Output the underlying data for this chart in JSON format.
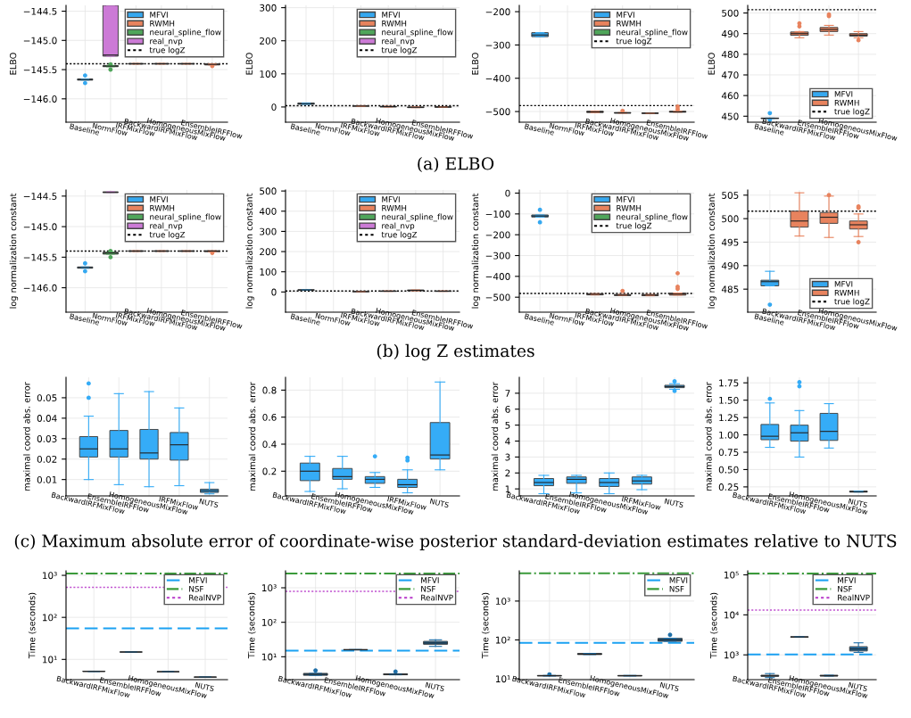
{
  "chart_data": [
    {
      "type": "box",
      "ylabel": "ELBO",
      "annotations": [
        "(a) ELBO"
      ],
      "legend": "top right",
      "grid": true,
      "categories": [
        "Baseline",
        "NormFlow",
        "IRFMixFlow",
        "BackwardIRFMixFlow",
        "HomogeneousMixFlow",
        "EnsembleIRFFlow"
      ],
      "series": [
        {
          "name": "MFVI",
          "color": "#35a8f0",
          "boxes": [
            {
              "low": -145.68,
              "q1": -145.68,
              "median": -145.67,
              "q3": -145.66,
              "high": -145.66,
              "outliers": [
                -145.6,
                -145.73
              ]
            },
            null,
            null,
            null,
            null,
            null
          ]
        },
        {
          "name": "RWMH",
          "color": "#e8835e",
          "boxes": [
            null,
            null,
            {
              "low": -145.405,
              "q1": -145.405,
              "median": -145.4,
              "q3": -145.395,
              "high": -145.395
            },
            {
              "low": -145.405,
              "q1": -145.405,
              "median": -145.4,
              "q3": -145.395,
              "high": -145.395
            },
            {
              "low": -145.405,
              "q1": -145.405,
              "median": -145.4,
              "q3": -145.395,
              "high": -145.395
            },
            {
              "low": -145.42,
              "q1": -145.42,
              "median": -145.41,
              "q3": -145.4,
              "high": -145.4,
              "outliers": [
                -145.44
              ]
            }
          ]
        },
        {
          "name": "neural_spline_flow",
          "color": "#4fa65a",
          "boxes": [
            null,
            {
              "low": -145.45,
              "q1": -145.45,
              "median": -145.44,
              "q3": -145.43,
              "high": -145.43,
              "outliers": [
                -145.41,
                -145.5
              ]
            },
            null,
            null,
            null,
            null
          ]
        },
        {
          "name": "real_nvp",
          "color": "#cc7ad6",
          "boxes": [
            null,
            {
              "low": -145.27,
              "q1": -145.27,
              "median": -145.25,
              "q3": -144.4,
              "high": -144.4
            },
            null,
            null,
            null,
            null
          ]
        }
      ],
      "ylim": [
        -146.4,
        -144.4
      ],
      "yticks": [
        {
          "value": -146,
          "label": "−146.0"
        },
        {
          "value": -145.5,
          "label": "−145.5"
        },
        {
          "value": -145,
          "label": "−145.0"
        },
        {
          "value": -144.5,
          "label": "−144.5"
        }
      ],
      "ref_lines": [
        {
          "axis": "y",
          "value": -145.4,
          "label": "true logZ",
          "color": "#000000",
          "line_style": "dotted"
        }
      ]
    },
    {
      "type": "box",
      "ylabel": "ELBO",
      "legend": "top right",
      "grid": true,
      "categories": [
        "Baseline",
        "NormFlow",
        "IRFMixFlow",
        "BackwardIRFMixFlow",
        "HomogeneousMixFlow",
        "EnsembleIRFFlow"
      ],
      "series": [
        {
          "name": "MFVI",
          "color": "#35a8f0",
          "boxes": [
            {
              "low": 8,
              "q1": 8,
              "median": 10,
              "q3": 12,
              "high": 12
            },
            null,
            null,
            null,
            null,
            null
          ]
        },
        {
          "name": "RWMH",
          "color": "#e8835e",
          "boxes": [
            null,
            null,
            {
              "low": 2,
              "q1": 2,
              "median": 3,
              "q3": 4,
              "high": 4
            },
            {
              "low": 0,
              "q1": 0,
              "median": 1,
              "q3": 2,
              "high": 2
            },
            {
              "low": -2,
              "q1": -2,
              "median": -1,
              "q3": 0,
              "high": 0
            },
            {
              "low": -1,
              "q1": -1,
              "median": 0,
              "q3": 1,
              "high": 1
            }
          ]
        },
        {
          "name": "neural_spline_flow",
          "color": "#4fa65a",
          "boxes": [
            null,
            null,
            null,
            null,
            null,
            null
          ]
        },
        {
          "name": "real_nvp",
          "color": "#cc7ad6",
          "boxes": [
            null,
            null,
            null,
            null,
            null,
            null
          ]
        }
      ],
      "ylim": [
        -46,
        307
      ],
      "yticks": [
        0,
        100,
        200,
        300
      ],
      "ref_lines": [
        {
          "axis": "y",
          "value": 4,
          "label": "true logZ",
          "color": "#000000",
          "line_style": "dotted"
        }
      ]
    },
    {
      "type": "box",
      "ylabel": "ELBO",
      "legend": "top right",
      "grid": true,
      "categories": [
        "Baseline",
        "NormFlow",
        "IRFMixFlow",
        "BackwardIRFMixFlow",
        "HomogeneousMixFlow",
        "EnsembleIRFFlow"
      ],
      "series": [
        {
          "name": "MFVI",
          "color": "#35a8f0",
          "boxes": [
            {
              "low": -275,
              "q1": -275,
              "median": -270,
              "q3": -263,
              "high": -263
            },
            null,
            null,
            null,
            null,
            null
          ]
        },
        {
          "name": "RWMH",
          "color": "#e8835e",
          "boxes": [
            null,
            null,
            {
              "low": -503,
              "q1": -503,
              "median": -501,
              "q3": -499,
              "high": -499
            },
            {
              "low": -505,
              "q1": -505,
              "median": -504,
              "q3": -503,
              "high": -503,
              "outliers": [
                -498
              ]
            },
            {
              "low": -506,
              "q1": -506,
              "median": -505,
              "q3": -504,
              "high": -504
            },
            {
              "low": -502,
              "q1": -502,
              "median": -501,
              "q3": -499,
              "high": -499,
              "outliers": [
                -485,
                -493
              ]
            }
          ]
        },
        {
          "name": "neural_spline_flow",
          "color": "#4fa65a",
          "boxes": [
            null,
            null,
            null,
            null,
            null,
            null
          ]
        }
      ],
      "ylim": [
        -532,
        -181
      ],
      "yticks": [
        {
          "value": -500,
          "label": "−500"
        },
        {
          "value": -400,
          "label": "−400"
        },
        {
          "value": -300,
          "label": "−300"
        },
        {
          "value": -200,
          "label": "−200"
        }
      ],
      "ref_lines": [
        {
          "axis": "y",
          "value": -482,
          "label": "true logZ",
          "color": "#000000",
          "line_style": "dotted"
        }
      ]
    },
    {
      "type": "box",
      "ylabel": "ELBO",
      "legend": "bottom right",
      "grid": true,
      "categories": [
        "Baseline",
        "BackwardIRFMixFlow",
        "EnsembleIRFFlow",
        "HomogeneousMixFlow"
      ],
      "series": [
        {
          "name": "MFVI",
          "color": "#35a8f0",
          "boxes": [
            {
              "low": 448.9,
              "q1": 448.9,
              "median": 449,
              "q3": 449.1,
              "high": 449.1,
              "outliers": [
                451.5,
                448.3
              ]
            },
            null,
            null,
            null
          ]
        },
        {
          "name": "RWMH",
          "color": "#e8835e",
          "boxes": [
            null,
            {
              "low": 488,
              "q1": 489.2,
              "median": 490,
              "q3": 490.8,
              "high": 491,
              "outliers": [
                493.5,
                495
              ]
            },
            {
              "low": 489.3,
              "q1": 491,
              "median": 492,
              "q3": 493,
              "high": 494,
              "outliers": [
                498.5,
                499.3
              ]
            },
            {
              "low": 488,
              "q1": 488.8,
              "median": 489.3,
              "q3": 490,
              "high": 491,
              "outliers": [
                486.8
              ]
            }
          ]
        }
      ],
      "ylim": [
        447.1,
        503.7
      ],
      "yticks": [
        450,
        460,
        470,
        480,
        490,
        500
      ],
      "ref_lines": [
        {
          "axis": "y",
          "value": 501.6,
          "label": "true logZ",
          "color": "#000000",
          "line_style": "dotted"
        }
      ]
    },
    {
      "type": "box",
      "ylabel": "log normalization constant",
      "annotations": [
        "(b) log Z estimates"
      ],
      "legend": "top right",
      "grid": true,
      "categories": [
        "Baseline",
        "NormFlow",
        "IRFMixFlow",
        "BackwardIRFMixFlow",
        "HomogeneousMixFlow",
        "EnsembleIRFFlow"
      ],
      "series": [
        {
          "name": "MFVI",
          "color": "#35a8f0",
          "boxes": [
            {
              "low": -145.68,
              "q1": -145.68,
              "median": -145.67,
              "q3": -145.66,
              "high": -145.66,
              "outliers": [
                -145.6,
                -145.73
              ]
            },
            null,
            null,
            null,
            null,
            null
          ]
        },
        {
          "name": "RWMH",
          "color": "#e8835e",
          "boxes": [
            null,
            null,
            {
              "low": -145.405,
              "q1": -145.405,
              "median": -145.4,
              "q3": -145.395,
              "high": -145.395
            },
            {
              "low": -145.405,
              "q1": -145.405,
              "median": -145.4,
              "q3": -145.395,
              "high": -145.395
            },
            {
              "low": -145.405,
              "q1": -145.405,
              "median": -145.4,
              "q3": -145.395,
              "high": -145.395
            },
            {
              "low": -145.41,
              "q1": -145.41,
              "median": -145.4,
              "q3": -145.395,
              "high": -145.395,
              "outliers": [
                -145.43
              ]
            }
          ]
        },
        {
          "name": "neural_spline_flow",
          "color": "#4fa65a",
          "boxes": [
            null,
            {
              "low": -145.45,
              "q1": -145.45,
              "median": -145.43,
              "q3": -145.42,
              "high": -145.42,
              "outliers": [
                -145.4,
                -145.5
              ]
            },
            null,
            null,
            null,
            null
          ]
        },
        {
          "name": "real_nvp",
          "color": "#cc7ad6",
          "boxes": [
            null,
            {
              "low": -144.44,
              "q1": -144.44,
              "median": -144.44,
              "q3": -144.43,
              "high": -144.43
            },
            null,
            null,
            null,
            null
          ]
        }
      ],
      "ylim": [
        -146.4,
        -144.4
      ],
      "yticks": [
        {
          "value": -146,
          "label": "−146.0"
        },
        {
          "value": -145.5,
          "label": "−145.5"
        },
        {
          "value": -145,
          "label": "−145.0"
        },
        {
          "value": -144.5,
          "label": "−144.5"
        }
      ],
      "ref_lines": [
        {
          "axis": "y",
          "value": -145.4,
          "label": "true logZ",
          "color": "#000000",
          "line_style": "dotted"
        }
      ]
    },
    {
      "type": "box",
      "ylabel": "log normalization constant",
      "legend": "top right",
      "grid": true,
      "categories": [
        "Baseline",
        "NormFlow",
        "IRFMixFlow",
        "BackwardIRFMixFlow",
        "HomogeneousMixFlow",
        "EnsembleIRFFlow"
      ],
      "series": [
        {
          "name": "MFVI",
          "color": "#35a8f0",
          "boxes": [
            {
              "low": 9,
              "q1": 9,
              "median": 10,
              "q3": 11,
              "high": 11
            },
            null,
            null,
            null,
            null,
            null
          ]
        },
        {
          "name": "RWMH",
          "color": "#e8835e",
          "boxes": [
            null,
            null,
            {
              "low": 1,
              "q1": 1,
              "median": 2,
              "q3": 3,
              "high": 3
            },
            {
              "low": 3,
              "q1": 3,
              "median": 4,
              "q3": 5,
              "high": 5
            },
            {
              "low": 6,
              "q1": 6,
              "median": 8,
              "q3": 10,
              "high": 10
            },
            {
              "low": 3,
              "q1": 3,
              "median": 4,
              "q3": 5,
              "high": 5
            }
          ]
        },
        {
          "name": "neural_spline_flow",
          "color": "#4fa65a",
          "boxes": [
            null,
            null,
            null,
            null,
            null,
            null
          ]
        },
        {
          "name": "real_nvp",
          "color": "#cc7ad6",
          "boxes": [
            null,
            null,
            null,
            null,
            null,
            null
          ]
        }
      ],
      "ylim": [
        -100,
        505
      ],
      "yticks": [
        0,
        100,
        200,
        300,
        400,
        500
      ],
      "ref_lines": [
        {
          "axis": "y",
          "value": 5,
          "label": "true logZ",
          "color": "#000000",
          "line_style": "dotted"
        }
      ]
    },
    {
      "type": "box",
      "ylabel": "log normalization constant",
      "legend": "top right",
      "grid": true,
      "categories": [
        "Baseline",
        "NormFlow",
        "IRFMixFlow",
        "BackwardIRFMixFlow",
        "HomogeneousMixFlow",
        "EnsembleIRFFlow"
      ],
      "series": [
        {
          "name": "MFVI",
          "color": "#35a8f0",
          "boxes": [
            {
              "low": -115,
              "q1": -115,
              "median": -110,
              "q3": -105,
              "high": -105,
              "outliers": [
                -80,
                -140
              ]
            },
            null,
            null,
            null,
            null,
            null
          ]
        },
        {
          "name": "RWMH",
          "color": "#e8835e",
          "boxes": [
            null,
            null,
            {
              "low": -489,
              "q1": -489,
              "median": -486,
              "q3": -483,
              "high": -483
            },
            {
              "low": -492,
              "q1": -492,
              "median": -490,
              "q3": -487,
              "high": -487,
              "outliers": [
                -470
              ]
            },
            {
              "low": -493,
              "q1": -493,
              "median": -490,
              "q3": -487,
              "high": -487
            },
            {
              "low": -490,
              "q1": -490,
              "median": -485,
              "q3": -480,
              "high": -480,
              "outliers": [
                -385,
                -450,
                -460
              ]
            }
          ]
        },
        {
          "name": "neural_spline_flow",
          "color": "#4fa65a",
          "boxes": [
            null,
            null,
            null,
            null,
            null,
            null
          ]
        }
      ],
      "ylim": [
        -572,
        15
      ],
      "yticks": [
        {
          "value": -500,
          "label": "−500"
        },
        {
          "value": -400,
          "label": "−400"
        },
        {
          "value": -300,
          "label": "−300"
        },
        {
          "value": -200,
          "label": "−200"
        },
        {
          "value": -100,
          "label": "−100"
        },
        0
      ],
      "ref_lines": [
        {
          "axis": "y",
          "value": -482,
          "label": "true logZ",
          "color": "#000000",
          "line_style": "dotted"
        }
      ]
    },
    {
      "type": "box",
      "ylabel": "log normalization constant",
      "legend": "bottom right",
      "grid": true,
      "categories": [
        "Baseline",
        "BackwardIRFMixFlow",
        "EnsembleIRFFlow",
        "HomogeneousMixFlow"
      ],
      "series": [
        {
          "name": "MFVI",
          "color": "#35a8f0",
          "boxes": [
            {
              "low": 485.7,
              "q1": 485.7,
              "median": 486.6,
              "q3": 486.9,
              "high": 488.8,
              "outliers": [
                481.7
              ]
            },
            null,
            null,
            null
          ]
        },
        {
          "name": "RWMH",
          "color": "#e8835e",
          "boxes": [
            null,
            {
              "low": 496.3,
              "q1": 498.2,
              "median": 499.5,
              "q3": 501.6,
              "high": 505.5
            },
            {
              "low": 496,
              "q1": 499,
              "median": 500.3,
              "q3": 501.3,
              "high": 504.8,
              "outliers": [
                505
              ]
            },
            {
              "low": 496.2,
              "q1": 497.8,
              "median": 498.7,
              "q3": 499.5,
              "high": 501,
              "outliers": [
                502.6,
                502.3,
                495
              ]
            }
          ]
        }
      ],
      "ylim": [
        480.1,
        506.1
      ],
      "yticks": [
        485,
        490,
        495,
        500,
        505
      ],
      "ref_lines": [
        {
          "axis": "y",
          "value": 501.6,
          "label": "true logZ",
          "color": "#000000",
          "line_style": "dotted"
        }
      ]
    },
    {
      "type": "box",
      "ylabel": "maximal coord abs. error",
      "annotations": [
        "(c) Maximum absolute error of coordinate-wise posterior standard-deviation estimates relative to NUTS"
      ],
      "grid": true,
      "categories": [
        "BackwardIRFMixFlow",
        "EnsembleIRFFlow",
        "HomogeneousMixFlow",
        "IRFMixFlow",
        "NUTS"
      ],
      "series": [
        {
          "color": "#35acf7",
          "boxes": [
            {
              "low": 0.01,
              "q1": 0.021,
              "median": 0.025,
              "q3": 0.031,
              "high": 0.041,
              "outliers": [
                0.05,
                0.057
              ]
            },
            {
              "low": 0.0075,
              "q1": 0.021,
              "median": 0.025,
              "q3": 0.034,
              "high": 0.052
            },
            {
              "low": 0.0065,
              "q1": 0.02,
              "median": 0.023,
              "q3": 0.0345,
              "high": 0.053
            },
            {
              "low": 0.007,
              "q1": 0.0195,
              "median": 0.027,
              "q3": 0.033,
              "high": 0.045
            },
            {
              "low": 0.003,
              "q1": 0.0037,
              "median": 0.0045,
              "q3": 0.0053,
              "high": 0.0085
            }
          ]
        }
      ],
      "ylim": [
        0.002,
        0.06
      ],
      "yticks": [
        0.01,
        0.02,
        0.03,
        0.04,
        0.05
      ]
    },
    {
      "type": "box",
      "ylabel": "maximal coord abs. error",
      "grid": true,
      "categories": [
        "BackwardIRFMixFlow",
        "EnsembleIRFFlow",
        "HomogeneousMixFlow",
        "IRFMixFlow",
        "NUTS"
      ],
      "series": [
        {
          "color": "#35acf7",
          "boxes": [
            {
              "low": 0.05,
              "q1": 0.13,
              "median": 0.2,
              "q3": 0.26,
              "high": 0.31
            },
            {
              "low": 0.07,
              "q1": 0.14,
              "median": 0.16,
              "q3": 0.22,
              "high": 0.31
            },
            {
              "low": 0.08,
              "q1": 0.11,
              "median": 0.14,
              "q3": 0.16,
              "high": 0.19,
              "outliers": [
                0.31
              ]
            },
            {
              "low": 0.04,
              "q1": 0.08,
              "median": 0.1,
              "q3": 0.14,
              "high": 0.21,
              "outliers": [
                0.28,
                0.3
              ]
            },
            {
              "low": 0.21,
              "q1": 0.29,
              "median": 0.32,
              "q3": 0.56,
              "high": 0.86
            }
          ]
        }
      ],
      "ylim": [
        0.017,
        0.895
      ],
      "yticks": [
        0.2,
        0.4,
        0.6,
        0.8
      ]
    },
    {
      "type": "box",
      "ylabel": "maximal coord abs. error",
      "grid": true,
      "categories": [
        "BackwardIRFMixFlow",
        "EnsembleIRFFlow",
        "HomogeneousMixFlow",
        "IRFMixFlow",
        "NUTS"
      ],
      "series": [
        {
          "color": "#35acf7",
          "boxes": [
            {
              "low": 0.7,
              "q1": 1.2,
              "median": 1.4,
              "q3": 1.65,
              "high": 1.85
            },
            {
              "low": 0.75,
              "q1": 1.35,
              "median": 1.6,
              "q3": 1.75,
              "high": 1.85
            },
            {
              "low": 0.7,
              "q1": 1.15,
              "median": 1.4,
              "q3": 1.65,
              "high": 2.0
            },
            {
              "low": 0.95,
              "q1": 1.3,
              "median": 1.5,
              "q3": 1.75,
              "high": 1.85
            },
            {
              "low": 7.25,
              "q1": 7.35,
              "median": 7.42,
              "q3": 7.5,
              "high": 7.6,
              "outliers": [
                7.75,
                7.15
              ]
            }
          ]
        }
      ],
      "ylim": [
        0.56,
        8.0
      ],
      "yticks": [
        1,
        2,
        3,
        4,
        5,
        6,
        7
      ]
    },
    {
      "type": "box",
      "ylabel": "maximal coord abs. error",
      "grid": true,
      "categories": [
        "BackwardIRFMixFlow",
        "EnsembleIRFFlow",
        "HomogeneousMixFlow",
        "NUTS"
      ],
      "series": [
        {
          "color": "#35acf7",
          "boxes": [
            {
              "low": 0.82,
              "q1": 0.93,
              "median": 0.98,
              "q3": 1.15,
              "high": 1.46,
              "outliers": [
                1.52
              ]
            },
            {
              "low": 0.68,
              "q1": 0.91,
              "median": 1.03,
              "q3": 1.14,
              "high": 1.35,
              "outliers": [
                1.7,
                1.76
              ]
            },
            {
              "low": 0.81,
              "q1": 0.92,
              "median": 1.05,
              "q3": 1.31,
              "high": 1.45
            },
            {
              "low": 0.175,
              "q1": 0.175,
              "median": 0.18,
              "q3": 0.19,
              "high": 0.19
            }
          ]
        }
      ],
      "ylim": [
        0.12,
        1.83
      ],
      "yticks": [
        {
          "value": 0.25,
          "label": "0.25"
        },
        {
          "value": 0.5,
          "label": "0.50"
        },
        {
          "value": 0.75,
          "label": "0.75"
        },
        {
          "value": 1.0,
          "label": "1.00"
        },
        {
          "value": 1.25,
          "label": "1.25"
        },
        {
          "value": 1.5,
          "label": "1.50"
        },
        {
          "value": 1.75,
          "label": "1.75"
        }
      ]
    },
    {
      "type": "box",
      "ylabel": "Time (seconds)",
      "log": true,
      "legend": "top right",
      "grid": true,
      "categories": [
        "BackwardIRFMixFlow",
        "EnsembleIRFFlow",
        "HomogeneousMixFlow",
        "NUTS"
      ],
      "series": [
        {
          "color": "#1f6fa8",
          "boxes": [
            {
              "low": 5.15,
              "q1": 5.15,
              "median": 5.2,
              "q3": 5.25,
              "high": 5.25
            },
            {
              "low": 14.9,
              "q1": 14.9,
              "median": 15,
              "q3": 15.1,
              "high": 15.1
            },
            {
              "low": 5.08,
              "q1": 5.08,
              "median": 5.1,
              "q3": 5.12,
              "high": 5.12
            },
            {
              "low": 3.78,
              "q1": 3.78,
              "median": 3.8,
              "q3": 3.82,
              "high": 3.82
            }
          ]
        }
      ],
      "ylim": [
        3.3,
        1280
      ],
      "yticks": [
        {
          "value": 10,
          "label": "10¹"
        },
        {
          "value": 100,
          "label": "10²"
        },
        {
          "value": 1000,
          "label": "10³"
        }
      ],
      "ref_lines": [
        {
          "axis": "y",
          "value": 55,
          "label": "MFVI",
          "color": "#1ba1f2",
          "line_style": "dashed"
        },
        {
          "axis": "y",
          "value": 1110,
          "label": "NSF",
          "color": "#3a9a3a",
          "line_style": "dashdot"
        },
        {
          "axis": "y",
          "value": 520,
          "label": "RealNVP",
          "color": "#c050d0",
          "line_style": "dotted"
        }
      ]
    },
    {
      "type": "box",
      "ylabel": "Time (seconds)",
      "log": true,
      "legend": "top right",
      "grid": true,
      "categories": [
        "BackwardIRFMixFlow",
        "EnsembleIRFFlow",
        "HomogeneousMixFlow",
        "NUTS"
      ],
      "series": [
        {
          "color": "#1f6fa8",
          "boxes": [
            {
              "low": 2.9,
              "q1": 2.9,
              "median": 3.1,
              "q3": 3.3,
              "high": 3.3,
              "outliers": [
                4.0
              ]
            },
            {
              "low": 15.8,
              "q1": 15.8,
              "median": 16,
              "q3": 16.2,
              "high": 16.2
            },
            {
              "low": 3.0,
              "q1": 3.0,
              "median": 3.1,
              "q3": 3.2,
              "high": 3.2,
              "outliers": [
                3.7
              ]
            },
            {
              "low": 20,
              "q1": 23,
              "median": 25,
              "q3": 28,
              "high": 31
            }
          ]
        }
      ],
      "ylim": [
        2.17,
        3100
      ],
      "yticks": [
        {
          "value": 10,
          "label": "10¹"
        },
        {
          "value": 100,
          "label": "10²"
        },
        {
          "value": 1000,
          "label": "10³"
        }
      ],
      "ref_lines": [
        {
          "axis": "y",
          "value": 15,
          "label": "MFVI",
          "color": "#1ba1f2",
          "line_style": "dashed"
        },
        {
          "axis": "y",
          "value": 2600,
          "label": "NSF",
          "color": "#3a9a3a",
          "line_style": "dashdot"
        },
        {
          "axis": "y",
          "value": 785,
          "label": "RealNVP",
          "color": "#c050d0",
          "line_style": "dotted"
        }
      ]
    },
    {
      "type": "box",
      "ylabel": "Time (seconds)",
      "log": true,
      "legend": "top right",
      "grid": true,
      "categories": [
        "BackwardIRFMixFlow",
        "EnsembleIRFFlow",
        "HomogeneousMixFlow",
        "NUTS"
      ],
      "series": [
        {
          "color": "#1f6fa8",
          "boxes": [
            {
              "low": 11.8,
              "q1": 11.8,
              "median": 12,
              "q3": 12.2,
              "high": 12.2,
              "outliers": [
                13
              ]
            },
            {
              "low": 42,
              "q1": 42,
              "median": 43,
              "q3": 45,
              "high": 45
            },
            {
              "low": 11.8,
              "q1": 11.8,
              "median": 12,
              "q3": 12.2,
              "high": 12.2
            },
            {
              "low": 92,
              "q1": 92,
              "median": 100,
              "q3": 110,
              "high": 110,
              "outliers": [
                135
              ]
            }
          ]
        }
      ],
      "ylim": [
        9.5,
        6000
      ],
      "yticks": [
        {
          "value": 10,
          "label": "10¹"
        },
        {
          "value": 100,
          "label": "10²"
        },
        {
          "value": 1000,
          "label": "10³"
        }
      ],
      "ref_lines": [
        {
          "axis": "y",
          "value": 84,
          "label": "MFVI",
          "color": "#1ba1f2",
          "line_style": "dashed"
        },
        {
          "axis": "y",
          "value": 5170,
          "label": "NSF",
          "color": "#3a9a3a",
          "line_style": "dashdot"
        }
      ]
    },
    {
      "type": "box",
      "ylabel": "Time (seconds)",
      "log": true,
      "legend": "top right",
      "grid": true,
      "categories": [
        "BackwardIRFMixFlow",
        "EnsembleIRFFlow",
        "HomogeneousMixFlow",
        "NUTS"
      ],
      "series": [
        {
          "color": "#1f6fa8",
          "boxes": [
            {
              "low": 270,
              "q1": 290,
              "median": 300,
              "q3": 310,
              "high": 340
            },
            {
              "low": 2750,
              "q1": 2750,
              "median": 2800,
              "q3": 2850,
              "high": 2850
            },
            {
              "low": 295,
              "q1": 295,
              "median": 300,
              "q3": 310,
              "high": 310
            },
            {
              "low": 1150,
              "q1": 1250,
              "median": 1400,
              "q3": 1600,
              "high": 2000
            }
          ]
        }
      ],
      "ylim": [
        240,
        126000
      ],
      "yticks": [
        {
          "value": 1000,
          "label": "10³"
        },
        {
          "value": 10000,
          "label": "10⁴"
        },
        {
          "value": 100000,
          "label": "10⁵"
        }
      ],
      "ref_lines": [
        {
          "axis": "y",
          "value": 1020,
          "label": "MFVI",
          "color": "#1ba1f2",
          "line_style": "dashed"
        },
        {
          "axis": "y",
          "value": 108000,
          "label": "NSF",
          "color": "#3a9a3a",
          "line_style": "dashdot"
        },
        {
          "axis": "y",
          "value": 13200,
          "label": "RealNVP",
          "color": "#c050d0",
          "line_style": "dotted"
        }
      ]
    }
  ]
}
